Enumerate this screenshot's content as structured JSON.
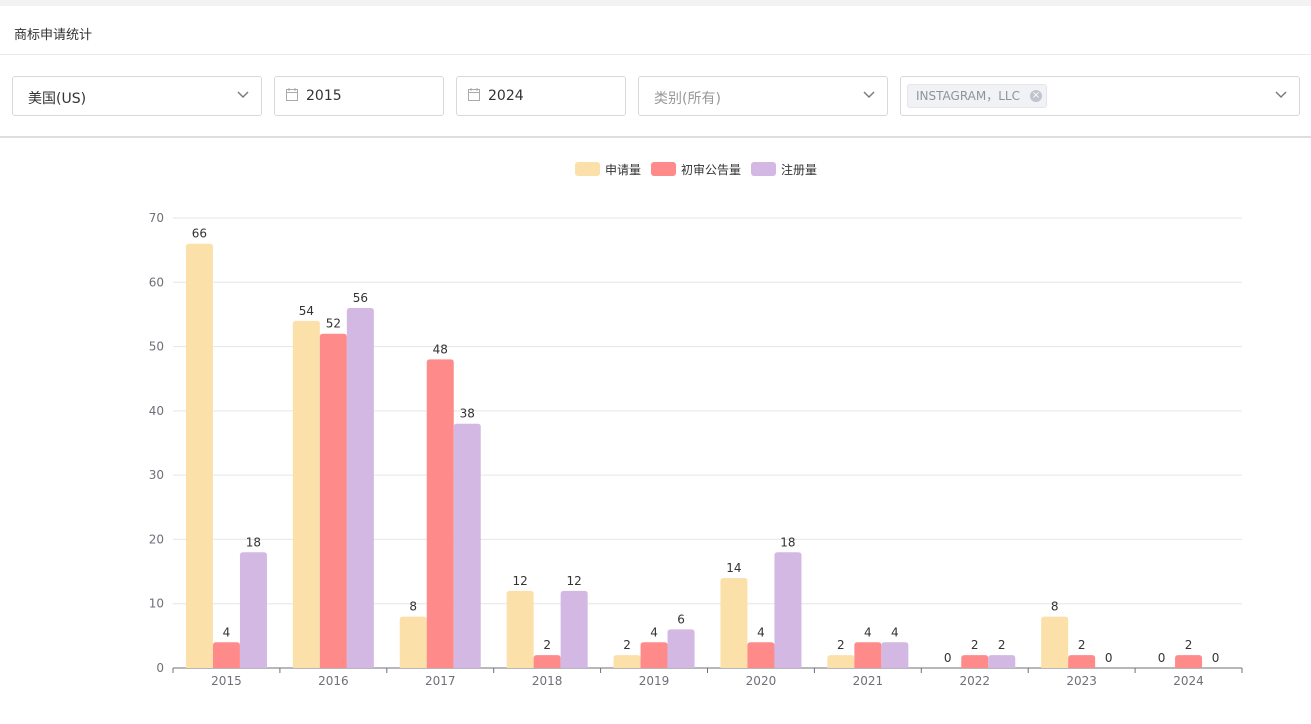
{
  "page": {
    "title": "商标申请统计"
  },
  "filters": {
    "country": "美国(US)",
    "year_start": "2015",
    "year_end": "2024",
    "category_placeholder": "类别(所有)",
    "applicant_tag": "INSTAGRAM，LLC"
  },
  "colors": {
    "series": [
      "#fce0aa",
      "#ff8a8a",
      "#d2b8e3"
    ],
    "grid": "#e6e6e6",
    "axis": "#6e7079",
    "axis_text": "#6e7079",
    "label_text": "#333333"
  },
  "chart_data": {
    "type": "bar",
    "categories": [
      "2015",
      "2016",
      "2017",
      "2018",
      "2019",
      "2020",
      "2021",
      "2022",
      "2023",
      "2024"
    ],
    "series": [
      {
        "name": "申请量",
        "values": [
          66,
          54,
          8,
          12,
          2,
          14,
          2,
          0,
          8,
          0
        ]
      },
      {
        "name": "初审公告量",
        "values": [
          4,
          52,
          48,
          2,
          4,
          4,
          4,
          2,
          2,
          2
        ]
      },
      {
        "name": "注册量",
        "values": [
          18,
          56,
          38,
          12,
          6,
          18,
          4,
          2,
          0,
          0
        ]
      }
    ],
    "ylim": [
      0,
      70
    ],
    "yticks": [
      0,
      10,
      20,
      30,
      40,
      50,
      60,
      70
    ],
    "grid": true,
    "legend_position": "top-center",
    "data_labels": true
  }
}
